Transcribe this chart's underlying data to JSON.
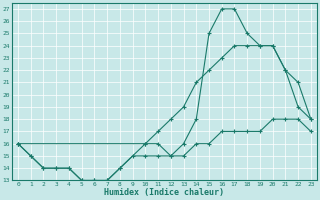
{
  "xlabel": "Humidex (Indice chaleur)",
  "bg_color": "#c8e8e8",
  "line_color": "#1a7a6a",
  "grid_color": "#ffffff",
  "xlim": [
    -0.5,
    23.5
  ],
  "ylim": [
    13,
    27.5
  ],
  "xticks": [
    0,
    1,
    2,
    3,
    4,
    5,
    6,
    7,
    8,
    9,
    10,
    11,
    12,
    13,
    14,
    15,
    16,
    17,
    18,
    19,
    20,
    21,
    22,
    23
  ],
  "yticks": [
    13,
    14,
    15,
    16,
    17,
    18,
    19,
    20,
    21,
    22,
    23,
    24,
    25,
    26,
    27
  ],
  "line1_x": [
    0,
    1,
    2,
    3,
    4,
    5,
    6,
    7,
    8,
    10,
    11,
    12,
    13,
    14,
    15,
    16,
    17,
    18,
    19,
    20,
    21,
    22,
    23
  ],
  "line1_y": [
    16,
    15,
    14,
    14,
    14,
    13,
    13,
    13,
    14,
    16,
    16,
    15,
    16,
    18,
    25,
    27,
    27,
    25,
    24,
    24,
    22,
    19,
    18
  ],
  "line2_x": [
    0,
    10,
    11,
    12,
    13,
    14,
    15,
    16,
    17,
    18,
    19,
    20,
    21,
    22,
    23
  ],
  "line2_y": [
    16,
    16,
    17,
    18,
    19,
    21,
    22,
    23,
    24,
    24,
    24,
    24,
    22,
    21,
    18
  ],
  "line3_x": [
    0,
    1,
    2,
    3,
    4,
    5,
    6,
    7,
    8,
    9,
    10,
    11,
    12,
    13,
    14,
    15,
    16,
    17,
    18,
    19,
    20,
    21,
    22,
    23
  ],
  "line3_y": [
    16,
    15,
    14,
    14,
    14,
    13,
    13,
    13,
    14,
    15,
    15,
    15,
    15,
    15,
    16,
    16,
    17,
    17,
    17,
    17,
    18,
    18,
    18,
    17
  ]
}
